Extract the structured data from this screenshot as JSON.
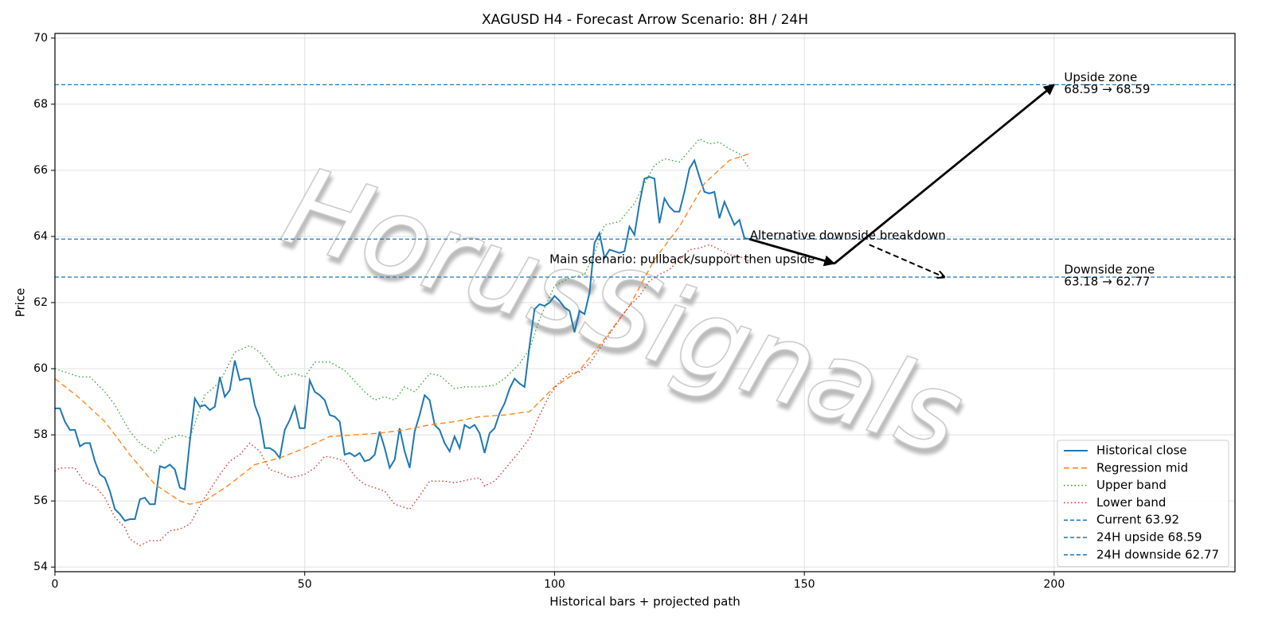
{
  "chart_data": {
    "type": "line",
    "title": "XAGUSD H4 - Forecast Arrow Scenario: 8H / 24H",
    "xlabel": "Historical bars + projected path",
    "ylabel": "Price",
    "watermark": "HorusSignals",
    "xlim": [
      0,
      236.2
    ],
    "ylim": [
      53.86,
      70.14
    ],
    "xticks": [
      0,
      50,
      100,
      150,
      200
    ],
    "yticks": [
      54,
      56,
      58,
      60,
      62,
      64,
      66,
      68,
      70
    ],
    "grid": true,
    "legend": "lower right",
    "series": [
      {
        "name": "Historical close",
        "color": "#1f77b4",
        "dash": "solid",
        "x": [
          0,
          1,
          2,
          3,
          4,
          5,
          6,
          7,
          8,
          9,
          10,
          11,
          12,
          13,
          14,
          15,
          16,
          17,
          18,
          19,
          20,
          21,
          22,
          23,
          24,
          25,
          26,
          27,
          28,
          29,
          30,
          31,
          32,
          33,
          34,
          35,
          36,
          37,
          38,
          39,
          40,
          41,
          42,
          43,
          44,
          45,
          46,
          47,
          48,
          49,
          50,
          51,
          52,
          53,
          54,
          55,
          56,
          57,
          58,
          59,
          60,
          61,
          62,
          63,
          64,
          65,
          66,
          67,
          68,
          69,
          70,
          71,
          72,
          73,
          74,
          75,
          76,
          77,
          78,
          79,
          80,
          81,
          82,
          83,
          84,
          85,
          86,
          87,
          88,
          89,
          90,
          91,
          92,
          93,
          94,
          95,
          96,
          97,
          98,
          99,
          100,
          101,
          102,
          103,
          104,
          105,
          106,
          107,
          108,
          109,
          110,
          111,
          112,
          113,
          114,
          115,
          116,
          117,
          118,
          119,
          120,
          121,
          122,
          123,
          124,
          125,
          126,
          127,
          128,
          129,
          130,
          131,
          132,
          133,
          134,
          135,
          136,
          137,
          138,
          139
        ],
        "values": [
          58.8,
          58.8,
          58.4,
          58.15,
          58.15,
          57.65,
          57.75,
          57.75,
          57.2,
          56.8,
          56.7,
          56.3,
          55.75,
          55.6,
          55.4,
          55.45,
          55.45,
          56.05,
          56.1,
          55.9,
          55.9,
          57.05,
          57.0,
          57.1,
          56.95,
          56.4,
          56.35,
          57.8,
          59.1,
          58.85,
          58.9,
          58.75,
          58.85,
          59.75,
          59.15,
          59.35,
          60.25,
          59.65,
          59.7,
          59.7,
          58.9,
          58.5,
          57.6,
          57.6,
          57.5,
          57.3,
          58.15,
          58.45,
          58.85,
          58.2,
          58.2,
          59.65,
          59.3,
          59.2,
          59.05,
          58.6,
          58.55,
          58.4,
          57.4,
          57.45,
          57.35,
          57.45,
          57.2,
          57.25,
          57.4,
          58.1,
          57.6,
          57.0,
          57.25,
          58.2,
          57.5,
          57.0,
          58.1,
          58.6,
          59.2,
          59.05,
          58.3,
          58.15,
          57.75,
          57.5,
          57.95,
          57.6,
          58.3,
          58.2,
          58.3,
          58.05,
          57.45,
          58.05,
          58.2,
          58.65,
          58.95,
          59.4,
          59.7,
          59.55,
          59.45,
          60.7,
          61.8,
          61.95,
          61.9,
          62.0,
          62.2,
          62.05,
          61.85,
          61.75,
          61.1,
          61.75,
          61.65,
          62.3,
          63.8,
          64.1,
          63.35,
          63.6,
          63.55,
          63.5,
          63.55,
          64.3,
          64.05,
          65.0,
          65.75,
          65.8,
          65.75,
          64.4,
          65.15,
          64.9,
          64.75,
          64.75,
          65.35,
          66.05,
          66.3,
          65.8,
          65.35,
          65.3,
          65.35,
          64.55,
          65.05,
          64.7,
          64.35,
          64.5,
          63.95,
          63.92
        ]
      },
      {
        "name": "Regression mid",
        "color": "#ff7f0e",
        "dash": "dashed",
        "x": [
          0,
          5,
          10,
          15,
          20,
          25,
          27,
          30,
          35,
          40,
          45,
          50,
          55,
          60,
          65,
          70,
          75,
          80,
          85,
          90,
          95,
          100,
          105,
          110,
          115,
          120,
          125,
          130,
          135,
          139
        ],
        "values": [
          59.7,
          59.1,
          58.4,
          57.4,
          56.5,
          56.0,
          55.9,
          56.0,
          56.5,
          57.1,
          57.3,
          57.6,
          57.95,
          58.0,
          58.05,
          58.15,
          58.3,
          58.4,
          58.55,
          58.6,
          58.7,
          59.45,
          59.95,
          60.9,
          61.9,
          63.3,
          64.3,
          65.6,
          66.3,
          66.5
        ]
      },
      {
        "name": "Upper band",
        "color": "#2ca02c",
        "dash": "dotted",
        "x": [
          0,
          3,
          5,
          7,
          10,
          12,
          15,
          17,
          20,
          22,
          25,
          27,
          30,
          33,
          36,
          39,
          41,
          45,
          48,
          50,
          52,
          55,
          58,
          62,
          64,
          66,
          68,
          70,
          72,
          75,
          77,
          80,
          82,
          85,
          88,
          90,
          93,
          95,
          97,
          100,
          103,
          106,
          108,
          110,
          113,
          116,
          118,
          120,
          122,
          125,
          127,
          129,
          131,
          133,
          135,
          137,
          139
        ],
        "values": [
          60.0,
          59.85,
          59.75,
          59.75,
          59.3,
          58.9,
          58.1,
          57.75,
          57.45,
          57.85,
          58.0,
          57.9,
          59.2,
          59.6,
          60.5,
          60.7,
          60.5,
          59.75,
          59.85,
          59.75,
          60.2,
          60.2,
          59.95,
          59.3,
          59.05,
          59.15,
          59.05,
          59.45,
          59.3,
          59.85,
          59.8,
          59.4,
          59.45,
          59.45,
          59.5,
          59.7,
          60.15,
          60.6,
          61.5,
          62.5,
          62.75,
          62.85,
          63.5,
          64.35,
          64.45,
          65.0,
          65.6,
          66.15,
          66.35,
          66.25,
          66.6,
          66.95,
          66.8,
          66.85,
          66.65,
          66.5,
          66.05
        ]
      },
      {
        "name": "Lower band",
        "color": "#d62728",
        "dash": "dotted",
        "x": [
          0,
          1,
          4,
          6,
          8,
          10,
          12,
          14,
          15,
          17,
          19,
          21,
          23,
          25,
          27,
          30,
          33,
          35,
          37,
          39,
          41,
          43,
          45,
          47,
          50,
          52,
          54,
          56,
          58,
          60,
          62,
          64,
          66,
          68,
          71,
          73,
          75,
          78,
          80,
          83,
          85,
          86,
          88,
          90,
          93,
          95,
          97,
          99,
          101,
          103,
          105,
          107,
          109,
          111,
          113,
          115,
          117,
          119,
          121,
          123,
          125,
          127,
          129,
          131,
          133,
          135,
          137,
          139
        ],
        "values": [
          56.9,
          57.0,
          57.0,
          56.55,
          56.45,
          56.1,
          55.5,
          55.2,
          54.85,
          54.65,
          54.8,
          54.8,
          55.1,
          55.15,
          55.3,
          56.1,
          56.8,
          57.2,
          57.4,
          57.75,
          57.5,
          56.95,
          56.85,
          56.7,
          56.8,
          57.0,
          57.35,
          57.3,
          57.2,
          56.75,
          56.5,
          56.4,
          56.3,
          55.9,
          55.75,
          56.15,
          56.6,
          56.6,
          56.55,
          56.65,
          56.7,
          56.45,
          56.6,
          56.95,
          57.5,
          57.9,
          58.6,
          59.2,
          59.6,
          59.85,
          59.9,
          60.15,
          60.6,
          61.05,
          61.5,
          61.9,
          62.2,
          62.65,
          62.85,
          63.0,
          63.3,
          63.6,
          63.65,
          63.75,
          63.6,
          63.45,
          63.4,
          63.25
        ]
      }
    ],
    "hlines": [
      {
        "name": "Current 63.92",
        "value": 63.92,
        "color": "#1f77b4"
      },
      {
        "name": "24H upside 68.59",
        "value": 68.59,
        "color": "#1f77b4"
      },
      {
        "name": "24H downside 62.77",
        "value": 62.77,
        "color": "#1f77b4"
      }
    ],
    "arrows": [
      {
        "x": [
          139,
          156
        ],
        "y": [
          63.92,
          63.18
        ],
        "style": "solid"
      },
      {
        "x": [
          156,
          200
        ],
        "y": [
          63.18,
          68.59
        ],
        "style": "solid"
      },
      {
        "x": [
          163,
          178
        ],
        "y": [
          63.75,
          62.77
        ],
        "style": "dashed"
      }
    ],
    "annotations": [
      {
        "lines": [
          "Main scenario: pullback/support then upside"
        ],
        "x": 99,
        "y": 63.3
      },
      {
        "lines": [
          "Alternative downside breakdown"
        ],
        "x": 139.1,
        "y": 64.02
      },
      {
        "lines": [
          "Upside zone",
          "68.59 → 68.59"
        ],
        "x": 202,
        "y": 68.8
      },
      {
        "lines": [
          "Downside zone",
          "63.18 → 62.77"
        ],
        "x": 202,
        "y": 62.99
      }
    ]
  }
}
